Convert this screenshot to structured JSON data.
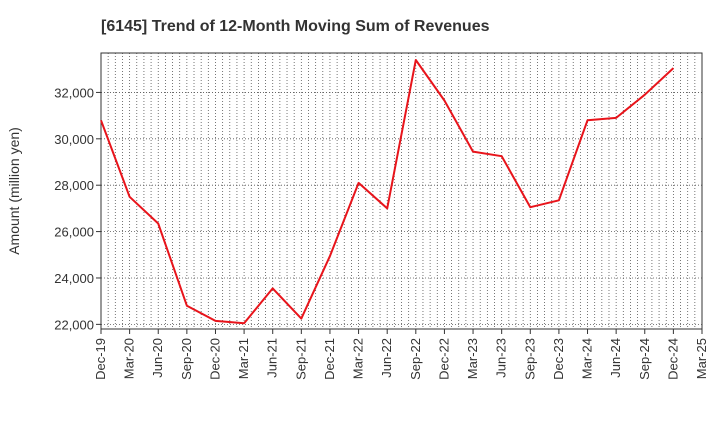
{
  "chart_data": {
    "type": "line",
    "title": "[6145]  Trend of 12-Month Moving Sum of Revenues",
    "xlabel": "",
    "ylabel": "Amount (million yen)",
    "ylim": [
      21800,
      33700
    ],
    "yticks": [
      22000,
      24000,
      26000,
      28000,
      30000,
      32000
    ],
    "ytick_labels": [
      "22,000",
      "24,000",
      "26,000",
      "28,000",
      "30,000",
      "32,000"
    ],
    "categories": [
      "Dec-19",
      "Mar-20",
      "Jun-20",
      "Sep-20",
      "Dec-20",
      "Mar-21",
      "Jun-21",
      "Sep-21",
      "Dec-21",
      "Mar-22",
      "Jun-22",
      "Sep-22",
      "Dec-22",
      "Mar-23",
      "Jun-23",
      "Sep-23",
      "Dec-23",
      "Mar-24",
      "Jun-24",
      "Sep-24",
      "Dec-24",
      "Mar-25"
    ],
    "series": [
      {
        "name": "",
        "color": "#e8141b",
        "values": [
          30800,
          27500,
          26350,
          22800,
          22150,
          22050,
          23550,
          22250,
          24950,
          28100,
          27000,
          33400,
          31650,
          29450,
          29250,
          27050,
          27350,
          30800,
          30900,
          31900,
          33050,
          null
        ]
      }
    ],
    "grid": true,
    "grid_style": "dotted",
    "legend": "none"
  }
}
